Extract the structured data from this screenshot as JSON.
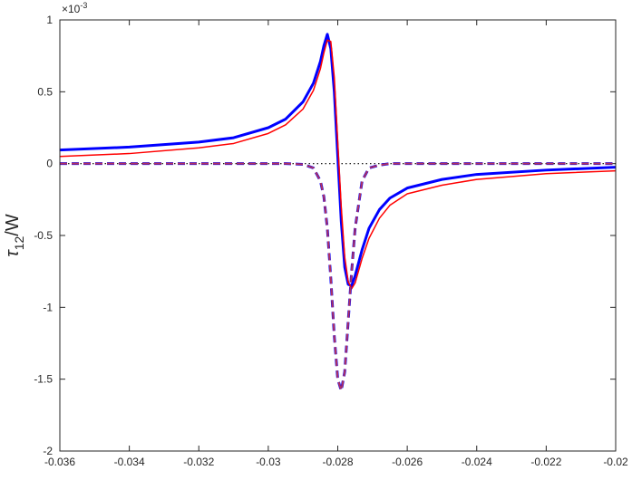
{
  "chart_data": {
    "type": "line",
    "ylabel_parts": [
      "τ",
      "12",
      "/W"
    ],
    "y_multiplier": {
      "base": "×10",
      "exponent": "-3"
    },
    "x": [
      -0.036,
      -0.034,
      -0.032,
      -0.031,
      -0.03,
      -0.0295,
      -0.029,
      -0.0287,
      -0.0285,
      -0.0284,
      -0.0283,
      -0.0282,
      -0.0281,
      -0.028,
      -0.0279,
      -0.0278,
      -0.0277,
      -0.0276,
      -0.0275,
      -0.0273,
      -0.0271,
      -0.0268,
      -0.0265,
      -0.026,
      -0.025,
      -0.024,
      -0.022,
      -0.02
    ],
    "series": [
      {
        "color": "#0000ff",
        "width": 3,
        "dash": "none",
        "values": [
          0.095,
          0.115,
          0.15,
          0.18,
          0.25,
          0.31,
          0.43,
          0.56,
          0.71,
          0.82,
          0.9,
          0.8,
          0.5,
          0.05,
          -0.4,
          -0.72,
          -0.84,
          -0.85,
          -0.78,
          -0.6,
          -0.45,
          -0.32,
          -0.24,
          -0.17,
          -0.11,
          -0.075,
          -0.045,
          -0.025
        ]
      },
      {
        "color": "#ff0000",
        "width": 1.5,
        "dash": "none",
        "values": [
          0.05,
          0.07,
          0.11,
          0.14,
          0.21,
          0.27,
          0.38,
          0.51,
          0.66,
          0.77,
          0.86,
          0.85,
          0.6,
          0.15,
          -0.3,
          -0.65,
          -0.82,
          -0.87,
          -0.83,
          -0.66,
          -0.52,
          -0.38,
          -0.29,
          -0.21,
          -0.15,
          -0.11,
          -0.07,
          -0.05
        ]
      },
      {
        "color": "#0000ff",
        "width": 3,
        "dash": "8 5",
        "values": [
          0,
          0,
          0,
          0,
          0,
          0,
          -0.005,
          -0.03,
          -0.12,
          -0.23,
          -0.45,
          -0.8,
          -1.2,
          -1.5,
          -1.58,
          -1.45,
          -1.1,
          -0.75,
          -0.45,
          -0.12,
          -0.03,
          -0.01,
          0,
          0,
          0,
          0,
          0,
          0
        ]
      },
      {
        "color": "#b03060",
        "width": 2,
        "dash": "8 5",
        "values": [
          0,
          0,
          0,
          0,
          0,
          0,
          -0.005,
          -0.03,
          -0.12,
          -0.23,
          -0.45,
          -0.8,
          -1.2,
          -1.5,
          -1.58,
          -1.45,
          -1.1,
          -0.75,
          -0.45,
          -0.12,
          -0.03,
          -0.01,
          0,
          0,
          0,
          0,
          0,
          0
        ]
      }
    ],
    "xlim": [
      -0.036,
      -0.02
    ],
    "xticks": [
      -0.036,
      -0.034,
      -0.032,
      -0.03,
      -0.028,
      -0.026,
      -0.024,
      -0.022,
      -0.02
    ],
    "ylim": [
      -2,
      1
    ],
    "yticks": [
      -2,
      -1.5,
      -1,
      -0.5,
      0,
      0.5,
      1
    ],
    "zero_line": true
  }
}
